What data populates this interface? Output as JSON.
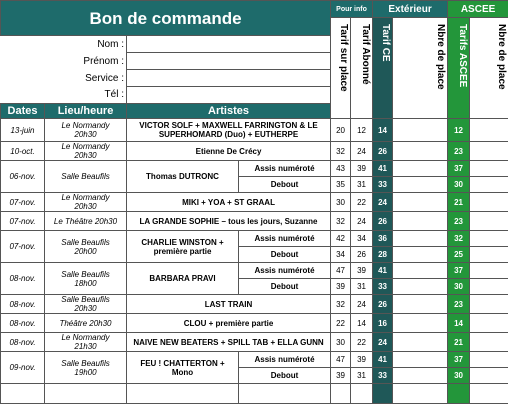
{
  "header": {
    "title": "Bon de commande",
    "pour_info": "Pour info",
    "exterieur": "Extérieur",
    "ascee": "ASCEE"
  },
  "columns": {
    "tarif_sur_place": "Tarif sur place",
    "tarif_abonne": "Tarif Abonné",
    "tarif_ce": "Tarif CE",
    "nbre_ext": "Nbre de place",
    "tarifs_ascee": "Tarifs ASCEE",
    "nbre_ascee": "Nbre de place",
    "dates": "Dates",
    "lieu": "Lieu/heure",
    "artistes": "Artistes"
  },
  "form": [
    "Nom :",
    "Prénom :",
    "Service :",
    "Tél :"
  ],
  "rows": [
    {
      "date": "13-juin",
      "venue": [
        "Le Normandy",
        "20h30"
      ],
      "artist": "VICTOR SOLF + MAXWELL FARRINGTON & LE SUPERHOMARD (Duo) + EUTHERPE",
      "prices": [
        {
          "sur_place": 20,
          "abonne": 12,
          "ce": 14,
          "ascee": 12
        }
      ]
    },
    {
      "date": "10-oct.",
      "venue": [
        "Le Normandy",
        "20h30"
      ],
      "artist": "Etienne De Crécy",
      "prices": [
        {
          "sur_place": 32,
          "abonne": 24,
          "ce": 26,
          "ascee": 23
        }
      ]
    },
    {
      "date": "06-nov.",
      "venue": [
        "Salle Beaufils"
      ],
      "artist": "Thomas DUTRONC",
      "prices": [
        {
          "option": "Assis numéroté",
          "sur_place": 43,
          "abonne": 39,
          "ce": 41,
          "ascee": 37
        },
        {
          "option": "Debout",
          "sur_place": 35,
          "abonne": 31,
          "ce": 33,
          "ascee": 30
        }
      ]
    },
    {
      "date": "07-nov.",
      "venue": [
        "Le Normandy",
        "20h30"
      ],
      "artist": "MIKI + YOA + ST GRAAL",
      "prices": [
        {
          "sur_place": 30,
          "abonne": 22,
          "ce": 24,
          "ascee": 21
        }
      ]
    },
    {
      "date": "07-nov.",
      "venue": [
        "Le Théâtre 20h30"
      ],
      "artist": "LA GRANDE SOPHIE – tous les jours, Suzanne",
      "prices": [
        {
          "sur_place": 32,
          "abonne": 24,
          "ce": 26,
          "ascee": 23
        }
      ]
    },
    {
      "date": "07-nov.",
      "venue": [
        "Salle Beaufils",
        "20h00"
      ],
      "artist": "CHARLIE WINSTON + première partie",
      "prices": [
        {
          "option": "Assis numéroté",
          "sur_place": 42,
          "abonne": 34,
          "ce": 36,
          "ascee": 32
        },
        {
          "option": "Debout",
          "sur_place": 34,
          "abonne": 26,
          "ce": 28,
          "ascee": 25
        }
      ]
    },
    {
      "date": "08-nov.",
      "venue": [
        "Salle Beaufils",
        "18h00"
      ],
      "artist": "BARBARA PRAVI",
      "prices": [
        {
          "option": "Assis numéroté",
          "sur_place": 47,
          "abonne": 39,
          "ce": 41,
          "ascee": 37
        },
        {
          "option": "Debout",
          "sur_place": 39,
          "abonne": 31,
          "ce": 33,
          "ascee": 30
        }
      ]
    },
    {
      "date": "08-nov.",
      "venue": [
        "Salle Beaufils",
        "20h30"
      ],
      "artist": "LAST TRAIN",
      "prices": [
        {
          "sur_place": 32,
          "abonne": 24,
          "ce": 26,
          "ascee": 23
        }
      ]
    },
    {
      "date": "08-nov.",
      "venue": [
        "Théâtre 20h30"
      ],
      "artist": "CLOU + première partie",
      "prices": [
        {
          "sur_place": 22,
          "abonne": 14,
          "ce": 16,
          "ascee": 14
        }
      ]
    },
    {
      "date": "08-nov.",
      "venue": [
        "Le Normandy",
        "21h30"
      ],
      "artist": "NAIVE NEW BEATERS + SPILL TAB + ELLA GUNN",
      "prices": [
        {
          "sur_place": 30,
          "abonne": 22,
          "ce": 24,
          "ascee": 21
        }
      ]
    },
    {
      "date": "09-nov.",
      "venue": [
        "Salle Beaufils",
        "19h00"
      ],
      "artist": "FEU ! CHATTERTON + Mono",
      "prices": [
        {
          "option": "Assis numéroté",
          "sur_place": 47,
          "abonne": 39,
          "ce": 41,
          "ascee": 37
        },
        {
          "option": "Debout",
          "sur_place": 39,
          "abonne": 31,
          "ce": 33,
          "ascee": 30
        }
      ]
    }
  ]
}
